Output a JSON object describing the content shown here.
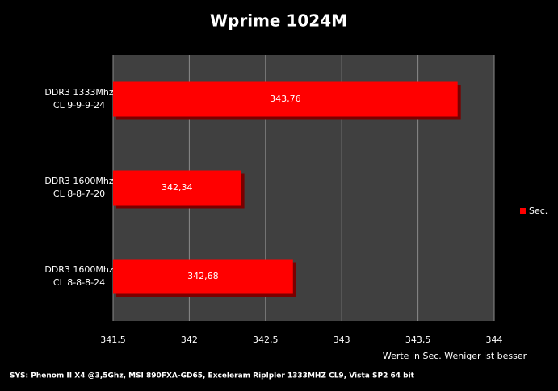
{
  "chart_data": {
    "type": "hbar",
    "title": "Wprime 1024M",
    "categories": [
      [
        "DDR3 1333Mhz",
        "CL 9-9-9-24"
      ],
      [
        "DDR3 1600Mhz",
        "CL 8-8-7-20"
      ],
      [
        "DDR3 1600Mhz",
        "CL 8-8-8-24"
      ]
    ],
    "series": [
      {
        "name": "Sec.",
        "color": "#ff0000",
        "values": [
          343.76,
          342.34,
          342.68
        ],
        "value_labels": [
          "343,76",
          "342,34",
          "342,68"
        ]
      }
    ],
    "xlim": [
      341.5,
      344
    ],
    "xticks": [
      {
        "value": 341.5,
        "label": "341,5"
      },
      342,
      {
        "value": 342.5,
        "label": "342,5"
      },
      343,
      {
        "value": 343.5,
        "label": "343,5"
      },
      344
    ],
    "x_label": "Werte in Sec. Weniger ist besser",
    "footnote": "SYS: Phenom II X4 @3,5Ghz, MSI 890FXA-GD65, Exceleram Riplpler 1333MHZ CL9, Vista SP2 64 bit",
    "grid": true,
    "legend": "right"
  }
}
